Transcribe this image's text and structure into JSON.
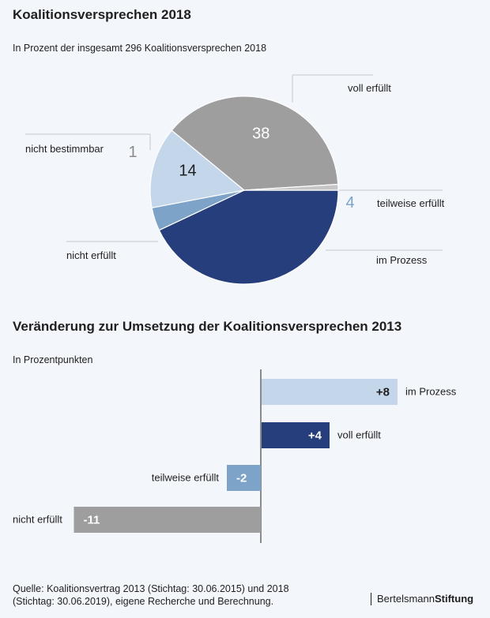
{
  "colors": {
    "voll_erfuellt": "#263f7c",
    "teilweise_erfuellt": "#7ea3c8",
    "im_prozess": "#c3d6ea",
    "nicht_erfuellt": "#9e9e9e",
    "nicht_bestimmbar": "#c6c6c6",
    "background": "#f3f6fa"
  },
  "source": {
    "line1": "Quelle: Koalitionsvertrag 2013 (Stichtag: 30.06.2015) und 2018",
    "line2": "(Stichtag: 30.06.2019), eigene Recherche und Berechnung."
  },
  "logo": {
    "part1": "Bertelsmann",
    "part2": "Stiftung"
  },
  "chart_data": [
    {
      "type": "pie",
      "title": "Koalitionsversprechen 2018",
      "subtitle": "In Prozent der insgesamt 296 Koalitionsversprechen 2018",
      "slices": [
        {
          "label": "voll erfüllt",
          "value": 43,
          "color": "#263f7c"
        },
        {
          "label": "teilweise erfüllt",
          "value": 4,
          "color": "#7ea3c8"
        },
        {
          "label": "im Prozess",
          "value": 14,
          "color": "#c3d6ea"
        },
        {
          "label": "nicht erfüllt",
          "value": 38,
          "color": "#9e9e9e"
        },
        {
          "label": "nicht bestimmbar",
          "value": 1,
          "color": "#c6c6c6"
        }
      ]
    },
    {
      "type": "bar",
      "orientation": "horizontal",
      "title": "Veränderung zur Umsetzung der Koalitionsversprechen 2013",
      "subtitle": "In Prozentpunkten",
      "categories": [
        "im Prozess",
        "voll erfüllt",
        "teilweise erfüllt",
        "nicht erfüllt"
      ],
      "values": [
        8,
        4,
        -2,
        -11
      ],
      "value_labels": [
        "+8",
        "+4",
        "-2",
        "-11"
      ],
      "colors": [
        "#c3d6ea",
        "#263f7c",
        "#7ea3c8",
        "#9e9e9e"
      ],
      "xlim": [
        -12,
        9
      ]
    }
  ]
}
